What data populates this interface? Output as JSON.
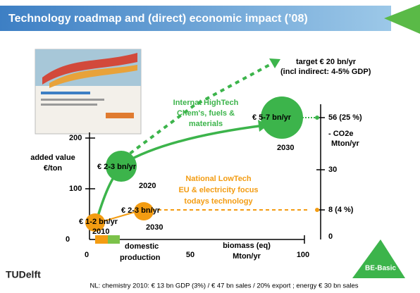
{
  "header": {
    "title": "Technology roadmap and (direct) economic impact (’08)"
  },
  "target": {
    "line1": "target € 20 bn/yr",
    "line2": "(incl indirect: 4-5% GDP)"
  },
  "hightech": {
    "line1": "Internat HighTech",
    "line2": "Chem's, fuels &",
    "line3": "materials",
    "value": "€ 5-7 bn/yr",
    "year": "2030"
  },
  "right_axis": {
    "top": "56 (25 %)",
    "unit1": "- CO2e",
    "unit2": "Mton/yr",
    "mid": "30",
    "low": "8 (4 %)",
    "zero": "0"
  },
  "left_axis": {
    "top": "200",
    "label1": "added value",
    "label2": "€/ton",
    "mid": "100",
    "zero": "0"
  },
  "mid_2020": {
    "value": "€ 2-3 bn/yr",
    "year": "2020"
  },
  "lowtech": {
    "line1": "National LowTech",
    "line2": "EU & electricity focus",
    "line3": "todays technology",
    "value": "€ 2-3 bn/yr",
    "year": "2030"
  },
  "start": {
    "value": "€ 1-2 bn/yr",
    "year": "2010"
  },
  "domestic": {
    "line1": "domestic",
    "line2": "production"
  },
  "x_axis": {
    "t0": "0",
    "t50": "50",
    "t100": "100",
    "label1": "biomass (eq)",
    "label2": "Mton/yr"
  },
  "logos": {
    "left": "TUDelft",
    "right": "BE-Basic"
  },
  "footer": "NL: chemistry 2010: € 13 bn GDP (3%) / € 47 bn sales / 20% export ; energy € 30 bn sales"
}
